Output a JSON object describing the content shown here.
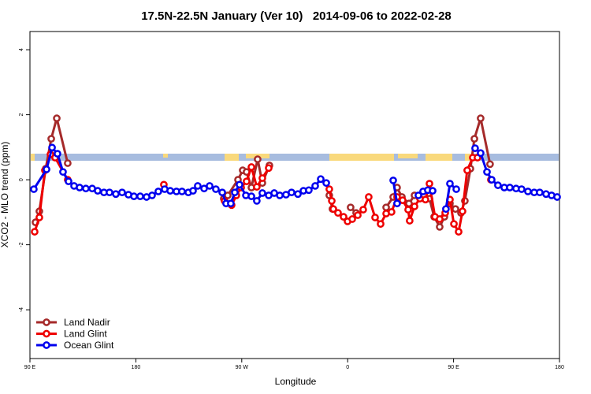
{
  "chart_data": {
    "type": "line",
    "title": "17.5N-22.5N January (Ver 10)   2014-09-06 to 2022-02-28",
    "x_label": "Longitude",
    "y_label": "XCO2 - MLO trend (ppm)",
    "xlim": [
      90,
      540
    ],
    "ylim": [
      -5.5,
      4.56
    ],
    "xticks": [
      {
        "value": 90,
        "label": "90 E"
      },
      180,
      {
        "value": 270,
        "label": "90 W"
      },
      {
        "value": 360,
        "label": "0"
      },
      {
        "value": 450,
        "label": "90 E"
      },
      {
        "value": 540,
        "label": "180"
      }
    ],
    "yticks": [
      -4,
      -2,
      0,
      2,
      4
    ],
    "legend": "bottom-left",
    "series": [
      {
        "name": "Land Nadir",
        "color": "#a52a2a",
        "x": [
          94.7,
          98.0,
          103.4,
          108.1,
          112.8,
          122.1,
          null,
          254.7,
          258.1,
          266.8,
          270.8,
          274.1,
          278.2,
          283.5,
          287.5,
          293.5,
          null,
          344.4,
          347.1,
          null,
          362.5,
          367.2,
          null,
          392.7,
          398.7,
          402.0,
          406.1,
          412.1,
          416.8,
          null,
          429.5,
          433.5,
          438.2,
          442.2,
          446.9,
          451.6,
          456.3,
          459.6,
          464.3,
          467.7,
          473.0,
          481.0
        ],
        "values": [
          -1.31,
          -0.97,
          0.34,
          1.26,
          1.89,
          0.51,
          null,
          -0.58,
          -0.48,
          0.0,
          0.29,
          0.24,
          -0.24,
          0.63,
          -0.1,
          0.44,
          null,
          -0.48,
          -0.9,
          null,
          -0.85,
          -1.02,
          null,
          -0.85,
          -0.53,
          -0.24,
          -0.53,
          -0.73,
          -0.48,
          null,
          -0.58,
          -1.14,
          -1.45,
          -1.14,
          -0.73,
          -0.9,
          -1.02,
          -0.65,
          0.34,
          1.26,
          1.89,
          0.48
        ]
      },
      {
        "name": "Land Glint",
        "color": "#ee0000",
        "x": [
          94.0,
          98.0,
          102.7,
          107.4,
          111.4,
          122.1,
          null,
          203.8,
          null,
          255.4,
          261.4,
          265.4,
          269.5,
          274.1,
          278.2,
          282.8,
          287.5,
          292.9,
          null,
          344.4,
          346.5,
          347.8,
          351.8,
          356.5,
          359.9,
          363.9,
          368.6,
          373.2,
          377.9,
          383.3,
          388.0,
          392.7,
          397.3,
          402.0,
          406.7,
          411.4,
          412.7,
          416.8,
          421.4,
          426.1,
          429.5,
          434.2,
          438.2,
          442.9,
          446.9,
          450.3,
          454.3,
          457.6,
          461.6,
          466.3,
          470.3,
          null,
          481.7
        ],
        "values": [
          -1.6,
          -1.16,
          0.29,
          0.78,
          0.68,
          0.0,
          null,
          -0.15,
          null,
          -0.65,
          -0.78,
          -0.48,
          -0.24,
          -0.05,
          0.39,
          -0.22,
          0.05,
          0.36,
          null,
          -0.29,
          -0.65,
          -0.9,
          -1.02,
          -1.14,
          -1.28,
          -1.21,
          -1.09,
          -0.92,
          -0.53,
          -1.16,
          -1.36,
          -1.04,
          -0.99,
          -0.53,
          -0.63,
          -0.92,
          -1.26,
          -0.82,
          -0.58,
          -0.61,
          -0.12,
          -1.14,
          -1.21,
          -1.02,
          -0.61,
          -1.36,
          -1.6,
          -0.97,
          0.29,
          0.68,
          0.68,
          null,
          0.0
        ]
      },
      {
        "name": "Ocean Glint",
        "color": "#0000ee",
        "x": [
          93.3,
          104.1,
          108.8,
          113.4,
          118.1,
          122.8,
          127.5,
          132.2,
          137.5,
          142.9,
          147.6,
          152.9,
          157.6,
          163.0,
          168.3,
          173.7,
          178.4,
          183.7,
          189.1,
          193.8,
          199.1,
          204.5,
          209.2,
          214.5,
          219.2,
          224.6,
          228.6,
          232.6,
          238.0,
          242.7,
          248.0,
          253.4,
          256.7,
          260.7,
          264.1,
          268.1,
          273.5,
          278.2,
          282.8,
          287.5,
          292.9,
          297.6,
          302.3,
          307.6,
          312.3,
          317.7,
          322.4,
          327.0,
          332.4,
          337.1,
          341.8,
          null,
          398.7,
          402.0,
          null,
          420.1,
          424.1,
          428.1,
          432.2,
          null,
          443.5,
          446.9,
          452.3,
          null,
          468.3,
          473.0,
          478.4,
          482.4,
          487.7,
          493.1,
          497.8,
          503.1,
          507.8,
          513.2,
          518.5,
          523.2,
          528.6,
          533.3,
          538.0
        ],
        "values": [
          -0.29,
          0.32,
          0.99,
          0.8,
          0.24,
          -0.05,
          -0.19,
          -0.24,
          -0.27,
          -0.27,
          -0.34,
          -0.39,
          -0.39,
          -0.44,
          -0.39,
          -0.46,
          -0.51,
          -0.51,
          -0.53,
          -0.48,
          -0.36,
          -0.29,
          -0.34,
          -0.36,
          -0.36,
          -0.39,
          -0.34,
          -0.19,
          -0.27,
          -0.19,
          -0.29,
          -0.39,
          -0.73,
          -0.73,
          -0.39,
          -0.15,
          -0.48,
          -0.51,
          -0.65,
          -0.41,
          -0.48,
          -0.41,
          -0.48,
          -0.46,
          -0.39,
          -0.44,
          -0.34,
          -0.32,
          -0.19,
          0.02,
          -0.1,
          null,
          -0.02,
          -0.73,
          null,
          -0.48,
          -0.36,
          -0.32,
          -0.34,
          null,
          -0.9,
          -0.12,
          -0.29,
          null,
          0.97,
          0.82,
          0.24,
          0.0,
          -0.17,
          -0.24,
          -0.24,
          -0.27,
          -0.29,
          -0.36,
          -0.39,
          -0.39,
          -0.44,
          -0.48,
          -0.53
        ]
      }
    ]
  }
}
